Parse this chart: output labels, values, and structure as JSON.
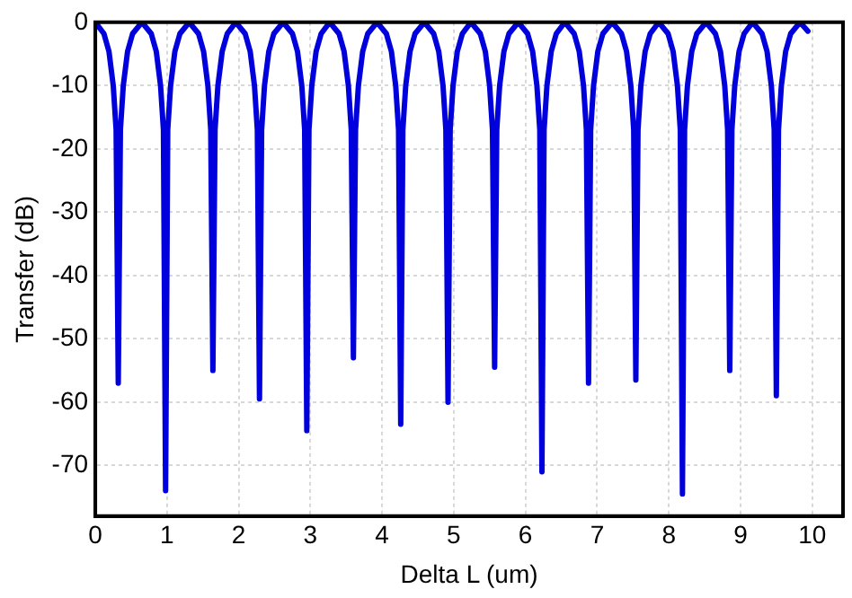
{
  "chart_data": {
    "type": "line",
    "xlabel": "Delta L (um)",
    "ylabel": "Transfer (dB)",
    "xlim": [
      0,
      10.43
    ],
    "ylim": [
      -78,
      0
    ],
    "xticks": [
      0,
      1,
      2,
      3,
      4,
      5,
      6,
      7,
      8,
      9,
      10
    ],
    "yticks": [
      0,
      -10,
      -20,
      -30,
      -40,
      -50,
      -60,
      -70
    ],
    "grid": true,
    "marker": "none",
    "line_style": "solid",
    "series": [
      {
        "color": "#0000dd",
        "x": [
          0,
          0.12,
          0.19,
          0.25,
          0.29,
          0.32,
          0.35,
          0.39,
          0.45,
          0.52,
          0.65,
          0.78,
          0.85,
          0.91,
          0.95,
          0.98,
          1.01,
          1.05,
          1.11,
          1.18,
          1.31,
          1.44,
          1.51,
          1.57,
          1.61,
          1.64,
          1.67,
          1.71,
          1.77,
          1.84,
          1.96,
          2.09,
          2.16,
          2.22,
          2.26,
          2.29,
          2.32,
          2.36,
          2.42,
          2.49,
          2.62,
          2.75,
          2.82,
          2.88,
          2.92,
          2.95,
          2.98,
          3.02,
          3.08,
          3.15,
          3.27,
          3.4,
          3.47,
          3.53,
          3.57,
          3.6,
          3.63,
          3.67,
          3.73,
          3.8,
          3.93,
          4.06,
          4.13,
          4.19,
          4.23,
          4.26,
          4.29,
          4.33,
          4.39,
          4.46,
          4.59,
          4.72,
          4.79,
          4.85,
          4.89,
          4.92,
          4.95,
          4.99,
          5.05,
          5.12,
          5.24,
          5.37,
          5.44,
          5.5,
          5.54,
          5.57,
          5.6,
          5.64,
          5.7,
          5.77,
          5.9,
          6.03,
          6.1,
          6.16,
          6.2,
          6.23,
          6.26,
          6.3,
          6.36,
          6.43,
          6.55,
          6.68,
          6.75,
          6.81,
          6.85,
          6.88,
          6.91,
          6.95,
          7.01,
          7.08,
          7.21,
          7.34,
          7.41,
          7.47,
          7.51,
          7.54,
          7.57,
          7.61,
          7.67,
          7.74,
          7.86,
          7.99,
          8.06,
          8.12,
          8.16,
          8.19,
          8.22,
          8.26,
          8.32,
          8.39,
          8.52,
          8.65,
          8.72,
          8.78,
          8.82,
          8.85,
          8.88,
          8.92,
          8.98,
          9.05,
          9.17,
          9.3,
          9.37,
          9.43,
          9.47,
          9.5,
          9.53,
          9.57,
          9.63,
          9.7,
          9.83,
          9.94
        ],
        "values": [
          0,
          -1.8,
          -4.6,
          -10,
          -17,
          -57,
          -17,
          -10,
          -4.6,
          -1.8,
          0,
          -1.8,
          -4.6,
          -10,
          -17,
          -74,
          -17,
          -10,
          -4.6,
          -1.8,
          0,
          -1.8,
          -4.6,
          -10,
          -17,
          -55,
          -17,
          -10,
          -4.6,
          -1.8,
          0,
          -1.8,
          -4.6,
          -10,
          -17,
          -59.5,
          -17,
          -10,
          -4.6,
          -1.8,
          0,
          -1.8,
          -4.6,
          -10,
          -17,
          -64.5,
          -17,
          -10,
          -4.6,
          -1.8,
          0,
          -1.8,
          -4.6,
          -10,
          -17,
          -53,
          -17,
          -10,
          -4.6,
          -1.8,
          0,
          -1.8,
          -4.6,
          -10,
          -17,
          -63.5,
          -17,
          -10,
          -4.6,
          -1.8,
          0,
          -1.8,
          -4.6,
          -10,
          -17,
          -60,
          -17,
          -10,
          -4.6,
          -1.8,
          0,
          -1.8,
          -4.6,
          -10,
          -17,
          -54.5,
          -17,
          -10,
          -4.6,
          -1.8,
          0,
          -1.8,
          -4.6,
          -10,
          -17,
          -71,
          -17,
          -10,
          -4.6,
          -1.8,
          0,
          -1.8,
          -4.6,
          -10,
          -17,
          -57,
          -17,
          -10,
          -4.6,
          -1.8,
          0,
          -1.8,
          -4.6,
          -10,
          -17,
          -56.5,
          -17,
          -10,
          -4.6,
          -1.8,
          0,
          -1.8,
          -4.6,
          -10,
          -17,
          -74.5,
          -17,
          -10,
          -4.6,
          -1.8,
          0,
          -1.8,
          -4.6,
          -10,
          -17,
          -55,
          -17,
          -10,
          -4.6,
          -1.8,
          0,
          -1.8,
          -4.6,
          -10,
          -17,
          -59,
          -17,
          -10,
          -4.6,
          -1.8,
          0,
          -1.4
        ]
      }
    ]
  }
}
